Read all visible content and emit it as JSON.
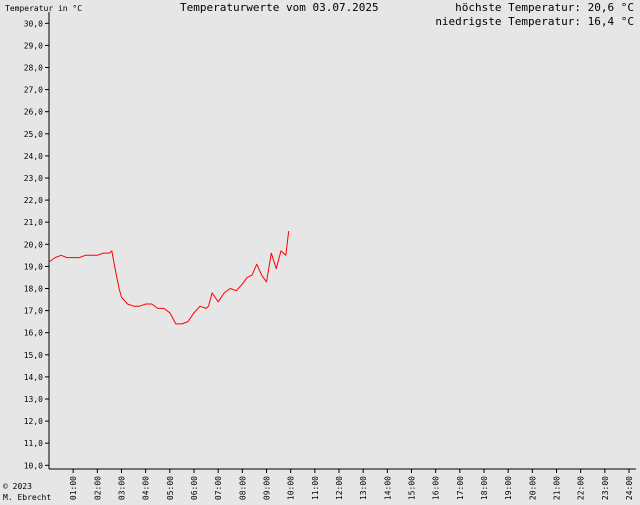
{
  "header": {
    "y_axis_caption": "Temperatur in °C",
    "title": "Temperaturwerte vom 03.07.2025",
    "max_label": "höchste Temperatur:",
    "max_value": "20,6 °C",
    "min_label": "niedrigste Temperatur:",
    "min_value": "16,4 °C"
  },
  "footer": {
    "copyright": "© 2023",
    "author": "M. Ebrecht"
  },
  "chart_data": {
    "type": "line",
    "title": "Temperaturwerte vom 03.07.2025",
    "xlabel": "",
    "ylabel": "Temperatur in °C",
    "xlim": [
      0,
      24
    ],
    "ylim": [
      9.6,
      30.4
    ],
    "y_ticks": [
      "10,0",
      "11,0",
      "12,0",
      "13,0",
      "14,0",
      "15,0",
      "16,0",
      "17,0",
      "18,0",
      "19,0",
      "20,0",
      "21,0",
      "22,0",
      "23,0",
      "24,0",
      "25,0",
      "26,0",
      "27,0",
      "28,0",
      "29,0",
      "30,0"
    ],
    "x_ticks": [
      "01:00",
      "02:00",
      "03:00",
      "04:00",
      "05:00",
      "06:00",
      "07:00",
      "08:00",
      "09:00",
      "10:00",
      "11:00",
      "12:00",
      "13:00",
      "14:00",
      "15:00",
      "16:00",
      "17:00",
      "18:00",
      "19:00",
      "20:00",
      "21:00",
      "22:00",
      "23:00",
      "24:00"
    ],
    "grid": false,
    "line_color": "#ff0000",
    "series": [
      {
        "x": [
          0.0,
          0.25,
          0.5,
          0.75,
          1.0,
          1.25,
          1.5,
          1.75,
          2.0,
          2.25,
          2.5,
          2.6,
          2.75,
          2.9,
          3.0,
          3.25,
          3.5,
          3.75,
          4.0,
          4.25,
          4.5,
          4.75,
          5.0,
          5.25,
          5.5,
          5.75,
          6.0,
          6.25,
          6.5,
          6.6,
          6.75,
          7.0,
          7.25,
          7.5,
          7.75,
          8.0,
          8.2,
          8.4,
          8.6,
          8.8,
          9.0,
          9.2,
          9.4,
          9.6,
          9.8,
          9.92
        ],
        "y": [
          19.2,
          19.4,
          19.5,
          19.4,
          19.4,
          19.4,
          19.5,
          19.5,
          19.5,
          19.6,
          19.6,
          19.7,
          18.8,
          18.0,
          17.6,
          17.3,
          17.2,
          17.2,
          17.3,
          17.3,
          17.1,
          17.1,
          16.9,
          16.4,
          16.4,
          16.5,
          16.9,
          17.2,
          17.1,
          17.2,
          17.8,
          17.4,
          17.8,
          18.0,
          17.9,
          18.2,
          18.5,
          18.6,
          19.1,
          18.6,
          18.3,
          19.6,
          18.9,
          19.7,
          19.5,
          20.6
        ]
      }
    ]
  }
}
